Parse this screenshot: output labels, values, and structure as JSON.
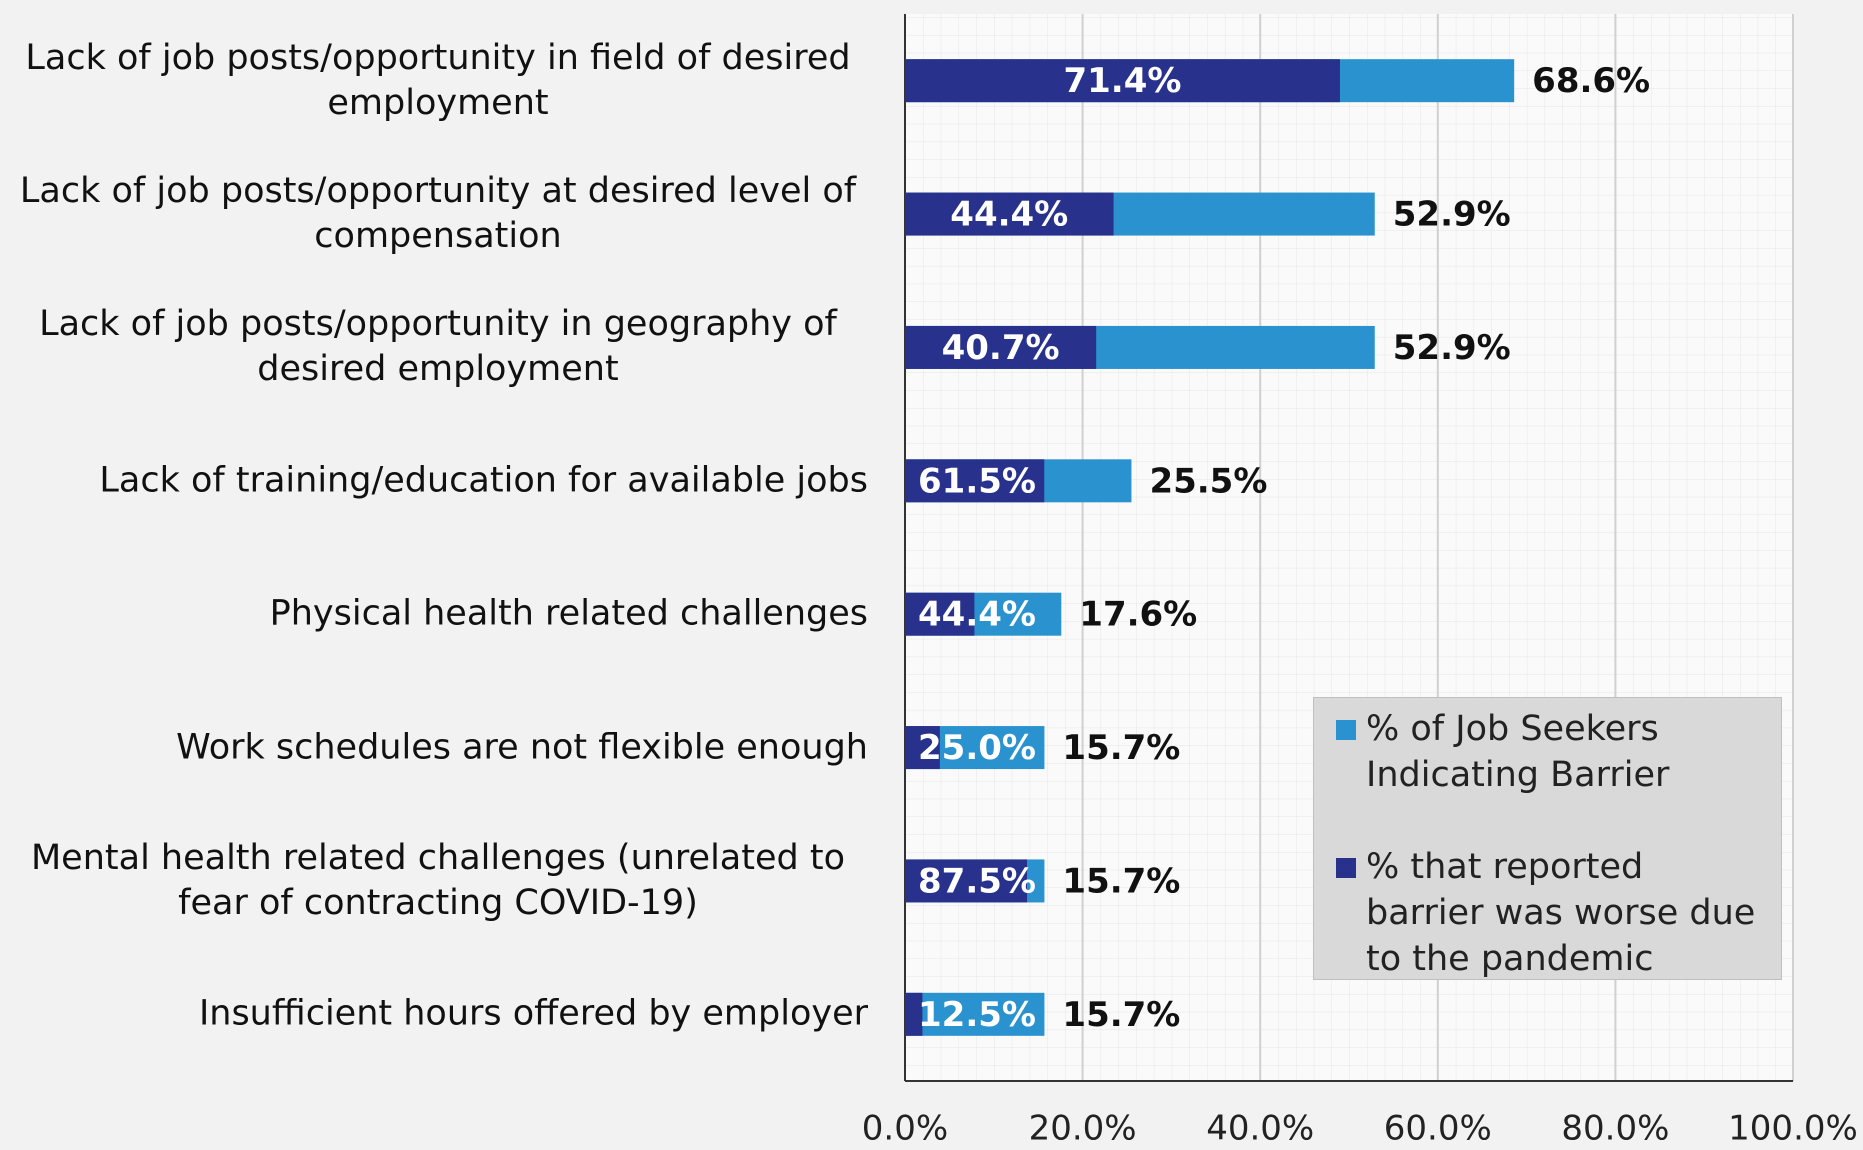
{
  "chart_data": {
    "type": "bar",
    "categories": [
      "Lack of job posts/opportunity in field of desired employment",
      "Lack of job posts/opportunity at desired level of compensation",
      "Lack of job posts/opportunity in geography of desired employment",
      "Lack of training/education for available jobs",
      "Physical health related challenges",
      "Work schedules are not flexible enough",
      "Mental health related challenges (unrelated to fear of contracting COVID-19)",
      "Insufficient hours offered by employer"
    ],
    "series": [
      {
        "name": "% of Job Seekers Indicating Barrier",
        "color": "#2a92cf",
        "values": [
          68.6,
          52.9,
          52.9,
          25.5,
          17.6,
          15.7,
          15.7,
          15.7
        ],
        "value_labels": [
          "68.6%",
          "52.9%",
          "52.9%",
          "25.5%",
          "17.6%",
          "15.7%",
          "15.7%",
          "15.7%"
        ]
      },
      {
        "name": "% that reported barrier was worse due to the pandemic",
        "color": "#28328c",
        "values": [
          71.4,
          44.4,
          40.7,
          61.5,
          44.4,
          25.0,
          87.5,
          12.5
        ],
        "value_labels": [
          "71.4%",
          "44.4%",
          "40.7%",
          "61.5%",
          "44.4%",
          "25.0%",
          "87.5%",
          "12.5%"
        ]
      }
    ],
    "xlim": [
      0,
      100
    ],
    "xticks": [
      {
        "value": 0,
        "label": "0.0%"
      },
      {
        "value": 20,
        "label": "20.0%"
      },
      {
        "value": 40,
        "label": "40.0%"
      },
      {
        "value": 60,
        "label": "60.0%"
      },
      {
        "value": 80,
        "label": "80.0%"
      },
      {
        "value": 100,
        "label": "100.0%"
      }
    ],
    "grid": true,
    "legend": "lower right"
  }
}
